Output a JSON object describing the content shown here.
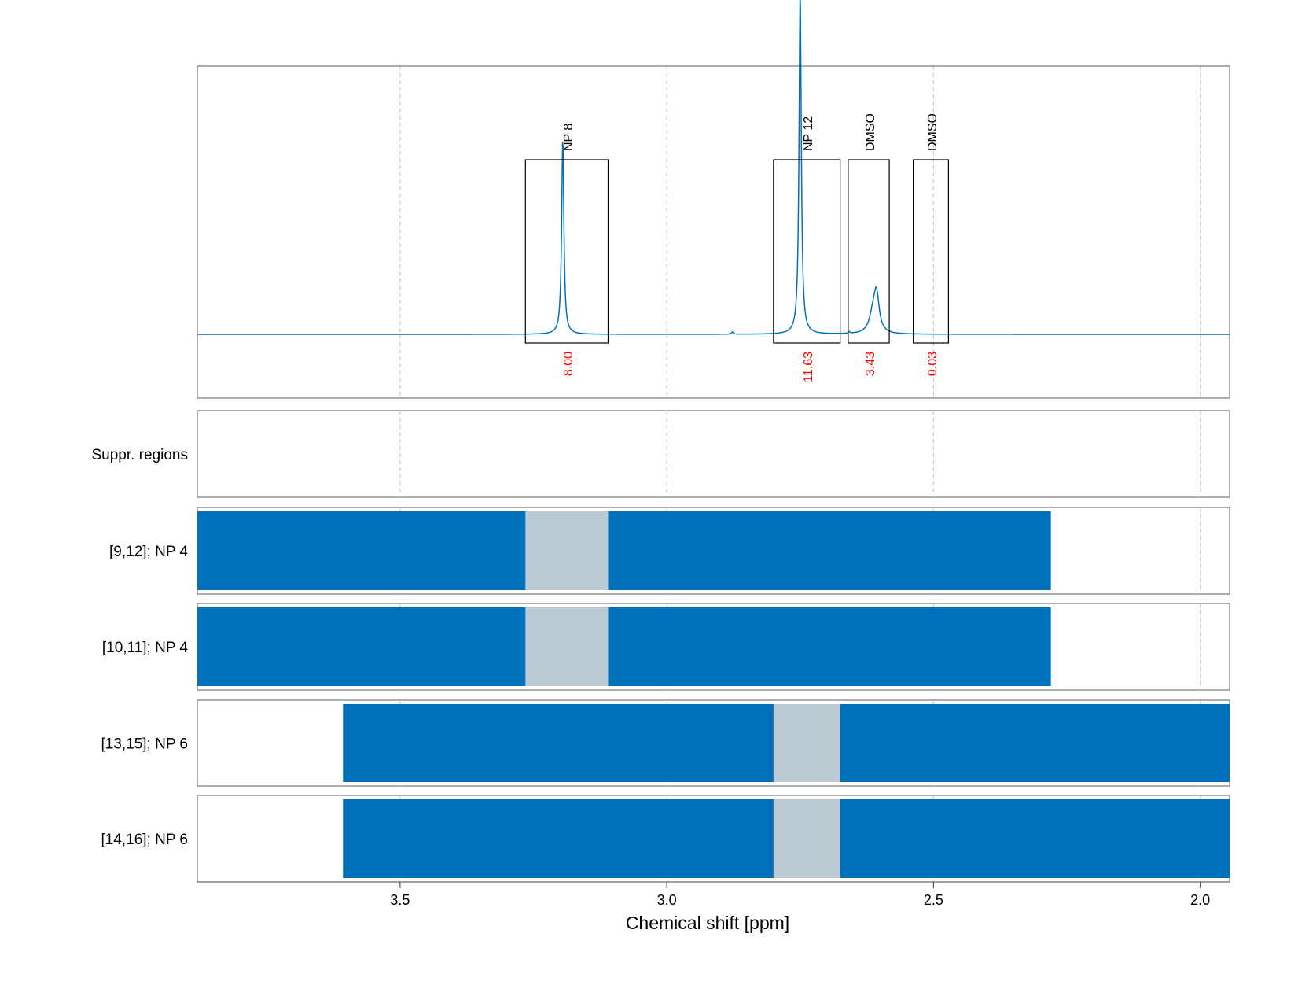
{
  "chart_data": {
    "type": "nmr-spectrum-with-range-bars",
    "xlabel": "Chemical shift [ppm]",
    "x_reversed": true,
    "xlim": [
      3.88,
      1.945
    ],
    "x_ticks": [
      3.5,
      3.0,
      2.5,
      2.0
    ],
    "x_tick_labels": [
      "3.5",
      "3.0",
      "2.5",
      "2.0"
    ],
    "grid": true,
    "spectrum": {
      "color": "#0070BA",
      "baseline": 0,
      "y_max_relative": 1.0,
      "peaks": [
        {
          "center": 3.195,
          "height": 0.54,
          "width": 0.0025
        },
        {
          "center": 2.75,
          "height": 0.945,
          "width": 0.0025
        },
        {
          "center": 2.607,
          "height": 0.105,
          "width": 0.006
        },
        {
          "center": 2.614,
          "height": 0.045,
          "width": 0.008
        },
        {
          "center": 2.877,
          "height": 0.006,
          "width": 0.002
        },
        {
          "center": 2.658,
          "height": 0.004,
          "width": 0.002
        }
      ]
    },
    "integration_regions": [
      {
        "label": "NP 8",
        "from": 3.265,
        "to": 3.11,
        "integral": "8.00"
      },
      {
        "label": "NP 12",
        "from": 2.8,
        "to": 2.675,
        "integral": "11.63"
      },
      {
        "label": "DMSO",
        "from": 2.66,
        "to": 2.583,
        "integral": "3.43"
      },
      {
        "label": "DMSO",
        "from": 2.538,
        "to": 2.472,
        "integral": "0.03"
      }
    ],
    "integral_color": "#FF0000",
    "suppressed_regions": {
      "label": "Suppr. regions",
      "ranges": []
    },
    "range_rows": [
      {
        "label": "[9,12]; NP 4",
        "range": [
          3.88,
          2.28
        ],
        "excluded": [
          3.265,
          3.11
        ]
      },
      {
        "label": "[10,11]; NP 4",
        "range": [
          3.88,
          2.28
        ],
        "excluded": [
          3.265,
          3.11
        ]
      },
      {
        "label": "[13,15]; NP 6",
        "range": [
          3.607,
          1.945
        ],
        "excluded": [
          2.8,
          2.675
        ]
      },
      {
        "label": "[14,16]; NP 6",
        "range": [
          3.607,
          1.945
        ],
        "excluded": [
          2.8,
          2.675
        ]
      }
    ],
    "bar_color": "#0070BA",
    "excluded_color": "#BCCBD3"
  }
}
